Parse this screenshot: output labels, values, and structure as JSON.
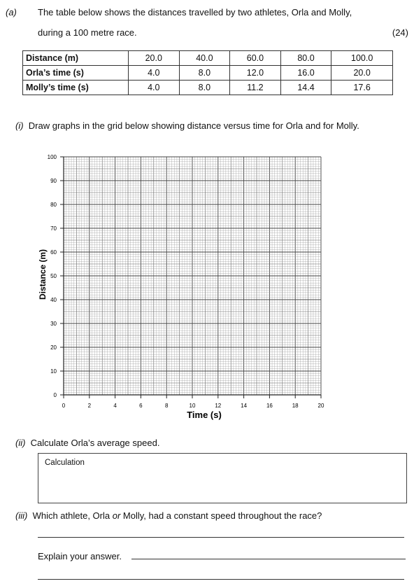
{
  "question": {
    "label": "(a)",
    "intro_line1": "The table below shows the distances travelled by two athletes, Orla and Molly,",
    "intro_line2": "during a 100 metre race.",
    "marks": "(24)"
  },
  "table": {
    "rows": [
      {
        "header": "Distance (m)",
        "cells": [
          "20.0",
          "40.0",
          "60.0",
          "80.0",
          "100.0"
        ]
      },
      {
        "header": "Orla’s time (s)",
        "cells": [
          "4.0",
          "8.0",
          "12.0",
          "16.0",
          "20.0"
        ]
      },
      {
        "header": "Molly’s time (s)",
        "cells": [
          "4.0",
          "8.0",
          "11.2",
          "14.4",
          "17.6"
        ]
      }
    ]
  },
  "part_i": {
    "number": "(i)",
    "text": "Draw graphs in the grid below showing distance versus time for Orla and for Molly."
  },
  "chart_data": {
    "type": "scatter",
    "xlabel": "Time (s)",
    "ylabel": "Distance (m)",
    "xlim": [
      0,
      20
    ],
    "ylim": [
      0,
      100
    ],
    "x_ticks": [
      "0",
      "2",
      "4",
      "6",
      "8",
      "10",
      "12",
      "14",
      "16",
      "18",
      "20"
    ],
    "y_ticks": [
      "0",
      "10",
      "20",
      "30",
      "40",
      "50",
      "60",
      "70",
      "80",
      "90",
      "100"
    ],
    "grid": true,
    "series": []
  },
  "part_ii": {
    "number": "(ii)",
    "text": "Calculate Orla’s average speed.",
    "box_label": "Calculation"
  },
  "part_iii": {
    "number": "(iii)",
    "text_pre": "Which athlete, Orla ",
    "text_or": "or",
    "text_post": " Molly, had a constant speed throughout the race?",
    "explain": "Explain your answer."
  }
}
